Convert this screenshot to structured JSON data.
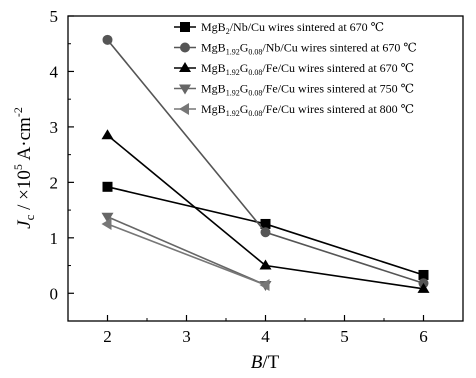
{
  "chart_data": {
    "type": "line",
    "xlabel": {
      "main": "B",
      "rest": "/T"
    },
    "ylabel": {
      "main": "J",
      "sub": "c",
      "rest": " / ×10",
      "sup": "5",
      "unit": " A·cm",
      "unit_sup": "-2"
    },
    "xlim": [
      1.5,
      6.5
    ],
    "ylim": [
      -0.5,
      5
    ],
    "x_ticks": [
      2,
      3,
      4,
      5,
      6
    ],
    "y_ticks": [
      0,
      1,
      2,
      3,
      4,
      5
    ],
    "grid": false,
    "legend_position": "top-right",
    "series": [
      {
        "name": "MgB2/Nb/Cu wires sintered at 670 ℃",
        "label": {
          "pre": "MgB",
          "sub1": "2",
          "mid": "",
          "sub2": "",
          "post": "/Nb/Cu wires sintered at 670 ℃"
        },
        "marker": "square",
        "color": "#000000",
        "x": [
          2,
          4,
          6
        ],
        "y": [
          1.92,
          1.25,
          0.33
        ]
      },
      {
        "name": "MgB1.92G0.08/Nb/Cu wires sintered at 670 ℃",
        "label": {
          "pre": "MgB",
          "sub1": "1.92",
          "mid": "G",
          "sub2": "0.08",
          "post": "/Nb/Cu wires sintered at 670 ℃"
        },
        "marker": "circle",
        "color": "#555555",
        "x": [
          2,
          4,
          6
        ],
        "y": [
          4.57,
          1.1,
          0.18
        ]
      },
      {
        "name": "MgB1.92G0.08/Fe/Cu wires sintered at 670 ℃",
        "label": {
          "pre": "MgB",
          "sub1": "1.92",
          "mid": "G",
          "sub2": "0.08",
          "post": "/Fe/Cu wires sintered at 670 ℃"
        },
        "marker": "triangle-up",
        "color": "#000000",
        "x": [
          2,
          4,
          6
        ],
        "y": [
          2.85,
          0.5,
          0.08
        ]
      },
      {
        "name": "MgB1.92G0.08/Fe/Cu wires sintered at 750 ℃",
        "label": {
          "pre": "MgB",
          "sub1": "1.92",
          "mid": "G",
          "sub2": "0.08",
          "post": "/Fe/Cu wires sintered at 750 ℃"
        },
        "marker": "triangle-down",
        "color": "#666666",
        "x": [
          2,
          4
        ],
        "y": [
          1.38,
          0.15
        ]
      },
      {
        "name": "MgB1.92G0.08/Fe/Cu wires sintered at 800 ℃",
        "label": {
          "pre": "MgB",
          "sub1": "1.92",
          "mid": "G",
          "sub2": "0.08",
          "post": "/Fe/Cu wires sintered at 800 ℃"
        },
        "marker": "triangle-left",
        "color": "#777777",
        "x": [
          2,
          4
        ],
        "y": [
          1.25,
          0.15
        ]
      }
    ]
  }
}
